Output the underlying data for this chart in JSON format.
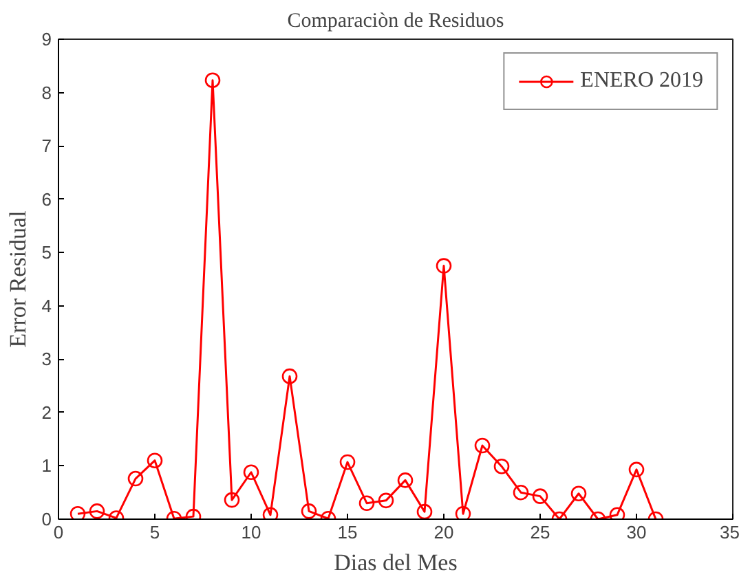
{
  "chart_data": {
    "type": "line",
    "title": "Comparaciòn de Residuos",
    "xlabel": "Dias del Mes",
    "ylabel": "Error Residual",
    "x": [
      1,
      2,
      3,
      4,
      5,
      6,
      7,
      8,
      9,
      10,
      11,
      12,
      13,
      14,
      15,
      16,
      17,
      18,
      19,
      20,
      21,
      22,
      23,
      24,
      25,
      26,
      27,
      28,
      29,
      30,
      31
    ],
    "series": [
      {
        "name": "ENERO 2019",
        "color": "#ff0000",
        "values": [
          0.1,
          0.15,
          0.02,
          0.76,
          1.1,
          0.01,
          0.05,
          8.23,
          0.36,
          0.88,
          0.08,
          2.68,
          0.15,
          0.01,
          1.07,
          0.3,
          0.35,
          0.73,
          0.14,
          4.75,
          0.1,
          1.38,
          0.99,
          0.5,
          0.43,
          0.0,
          0.48,
          0.0,
          0.08,
          0.93,
          0.0
        ]
      }
    ],
    "xlim": [
      0,
      35
    ],
    "ylim": [
      0,
      9
    ],
    "xticks": [
      0,
      5,
      10,
      15,
      20,
      25,
      30,
      35
    ],
    "yticks": [
      0,
      1,
      2,
      3,
      4,
      5,
      6,
      7,
      8,
      9
    ],
    "grid": false,
    "legend": "top right",
    "marker": "circle",
    "line_style": "solid"
  }
}
